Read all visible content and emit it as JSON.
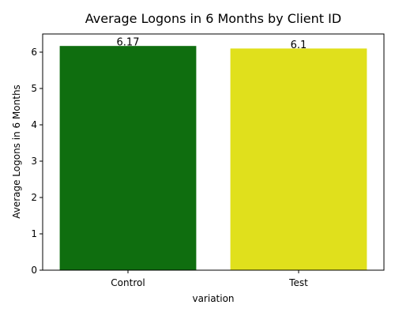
{
  "chart_data": {
    "type": "bar",
    "title": "Average Logons in 6 Months by Client ID",
    "xlabel": "variation",
    "ylabel": "Average Logons in 6 Months",
    "categories": [
      "Control",
      "Test"
    ],
    "values": [
      6.17,
      6.1
    ],
    "data_labels": [
      "6.17",
      "6.1"
    ],
    "colors": [
      "#0f6e0f",
      "#e0e01c"
    ],
    "ylim": [
      0,
      6.5
    ],
    "yticks": [
      0,
      1,
      2,
      3,
      4,
      5,
      6
    ],
    "grid": false,
    "legend": "none"
  }
}
